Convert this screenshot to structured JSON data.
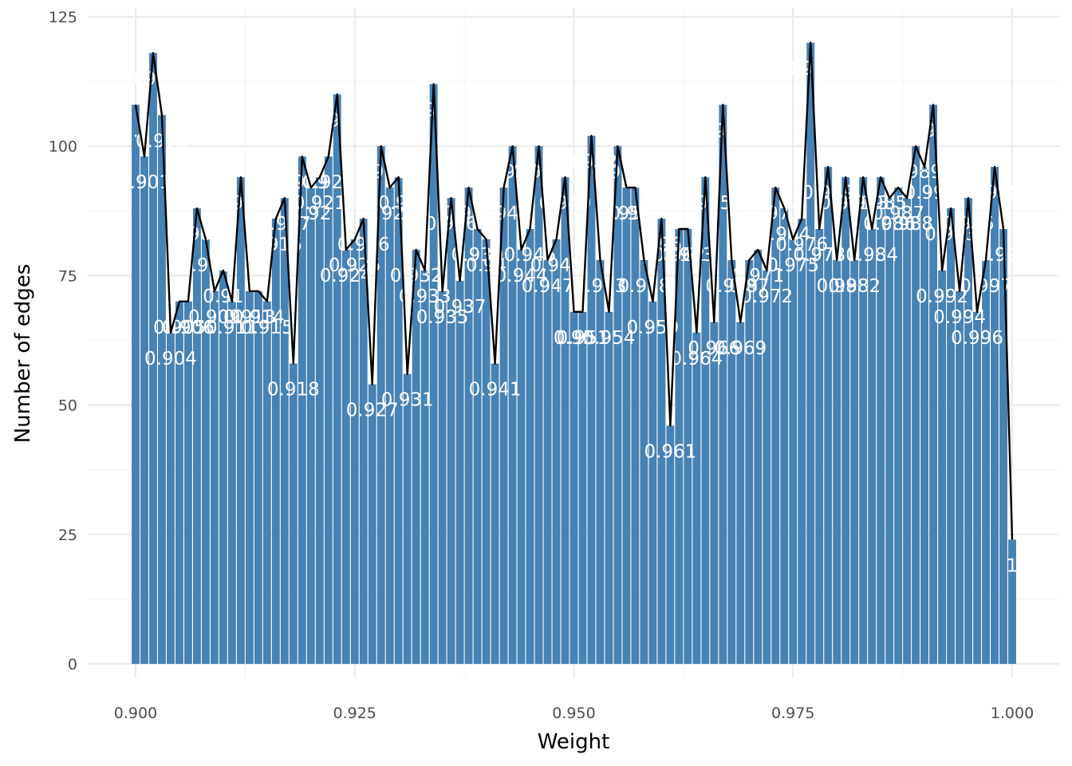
{
  "chart_data": {
    "type": "bar",
    "xlabel": "Weight",
    "ylabel": "Number of edges",
    "xlim": [
      0.895,
      1.005
    ],
    "ylim": [
      0,
      125
    ],
    "x_ticks": [
      "0.900",
      "0.925",
      "0.950",
      "0.975",
      "1.000"
    ],
    "y_ticks": [
      "0",
      "25",
      "50",
      "75",
      "100",
      "125"
    ],
    "grid": true,
    "bar_color": "#4682b4",
    "line_color": "#000000",
    "label_color": "#ffffff",
    "x": [
      0.9,
      0.901,
      0.902,
      0.903,
      0.904,
      0.905,
      0.906,
      0.907,
      0.908,
      0.909,
      0.91,
      0.911,
      0.912,
      0.913,
      0.914,
      0.915,
      0.916,
      0.917,
      0.918,
      0.919,
      0.92,
      0.921,
      0.922,
      0.923,
      0.924,
      0.925,
      0.926,
      0.927,
      0.928,
      0.929,
      0.93,
      0.931,
      0.932,
      0.933,
      0.934,
      0.935,
      0.936,
      0.937,
      0.938,
      0.939,
      0.94,
      0.941,
      0.942,
      0.943,
      0.944,
      0.945,
      0.946,
      0.947,
      0.948,
      0.949,
      0.95,
      0.951,
      0.952,
      0.953,
      0.954,
      0.955,
      0.956,
      0.957,
      0.958,
      0.959,
      0.96,
      0.961,
      0.962,
      0.963,
      0.964,
      0.965,
      0.966,
      0.967,
      0.968,
      0.969,
      0.97,
      0.971,
      0.972,
      0.973,
      0.974,
      0.975,
      0.976,
      0.977,
      0.978,
      0.979,
      0.98,
      0.981,
      0.982,
      0.983,
      0.984,
      0.985,
      0.986,
      0.987,
      0.988,
      0.989,
      0.99,
      0.991,
      0.992,
      0.993,
      0.994,
      0.995,
      0.996,
      0.997,
      0.998,
      0.999,
      1.0
    ],
    "values": [
      108,
      98,
      118,
      106,
      64,
      70,
      70,
      88,
      82,
      72,
      76,
      70,
      94,
      72,
      72,
      70,
      86,
      90,
      58,
      98,
      92,
      94,
      98,
      110,
      80,
      82,
      86,
      54,
      100,
      92,
      94,
      56,
      80,
      76,
      112,
      72,
      90,
      74,
      92,
      84,
      82,
      58,
      92,
      100,
      80,
      84,
      100,
      78,
      82,
      94,
      68,
      68,
      102,
      78,
      68,
      100,
      92,
      92,
      78,
      70,
      86,
      46,
      84,
      84,
      64,
      94,
      66,
      108,
      78,
      66,
      78,
      80,
      76,
      92,
      88,
      82,
      86,
      120,
      84,
      96,
      78,
      94,
      78,
      94,
      84,
      94,
      90,
      92,
      90,
      100,
      96,
      108,
      76,
      88,
      72,
      90,
      68,
      78,
      96,
      84,
      24
    ],
    "labels": [
      "0.9",
      "0.901",
      "0.902",
      "0.903",
      "0.904",
      "0.905",
      "0.906",
      "0.907",
      "0.908",
      "0.909",
      "0.91",
      "0.911",
      "0.912",
      "0.913",
      "0.914",
      "0.915",
      "0.916",
      "0.917",
      "0.918",
      "0.919",
      "0.92",
      "0.921",
      "0.922",
      "0.923",
      "0.924",
      "0.925",
      "0.926",
      "0.927",
      "0.928",
      "0.929",
      "0.93",
      "0.931",
      "0.932",
      "0.933",
      "0.934",
      "0.935",
      "0.936",
      "0.937",
      "0.938",
      "0.939",
      "0.94",
      "0.941",
      "0.942",
      "0.943",
      "0.944",
      "0.945",
      "0.946",
      "0.947",
      "0.948",
      "0.949",
      "0.95",
      "0.951",
      "0.952",
      "0.953",
      "0.954",
      "0.955",
      "0.956",
      "0.957",
      "0.958",
      "0.959",
      "0.96",
      "0.961",
      "0.962",
      "0.963",
      "0.964",
      "0.965",
      "0.966",
      "0.967",
      "0.968",
      "0.969",
      "0.97",
      "0.971",
      "0.972",
      "0.973",
      "0.974",
      "0.975",
      "0.976",
      "0.977",
      "0.978",
      "0.979",
      "0.98",
      "0.981",
      "0.982",
      "0.983",
      "0.984",
      "0.985",
      "0.986",
      "0.987",
      "0.988",
      "0.989",
      "0.99",
      "0.991",
      "0.992",
      "0.993",
      "0.994",
      "0.995",
      "0.996",
      "0.997",
      "0.998",
      "0.999",
      "1"
    ]
  }
}
